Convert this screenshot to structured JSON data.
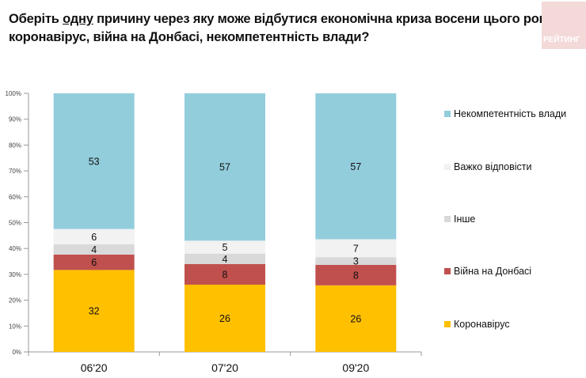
{
  "title": {
    "line1_pre": "Оберіть ",
    "line1_underlined": "одну",
    "line1_post": " причину через яку може відбутися економічна криза восени цього року:",
    "line2": "коронавірус, війна на Донбасі, некомпетентність влади?"
  },
  "logo_text": "РЕЙТИНГ",
  "chart_data": {
    "type": "bar",
    "stacked": "100%",
    "categories": [
      "06'20",
      "07'20",
      "09'20"
    ],
    "series": [
      {
        "name": "Коронавірус",
        "color": "#ffc000",
        "values": [
          32,
          26,
          26
        ]
      },
      {
        "name": "Війна на Донбасі",
        "color": "#c0504d",
        "values": [
          6,
          8,
          8
        ]
      },
      {
        "name": "Інше",
        "color": "#d9d9d9",
        "values": [
          4,
          4,
          3
        ]
      },
      {
        "name": "Важко відповісти",
        "color": "#f2f2f2",
        "values": [
          6,
          5,
          7
        ]
      },
      {
        "name": "Некомпетентність влади",
        "color": "#92cddc",
        "values": [
          53,
          57,
          57
        ]
      }
    ],
    "yticks": [
      "0%",
      "10%",
      "20%",
      "30%",
      "40%",
      "50%",
      "60%",
      "70%",
      "80%",
      "90%",
      "100%"
    ],
    "ylim": [
      0,
      100
    ],
    "legend": "right",
    "grid": false
  }
}
